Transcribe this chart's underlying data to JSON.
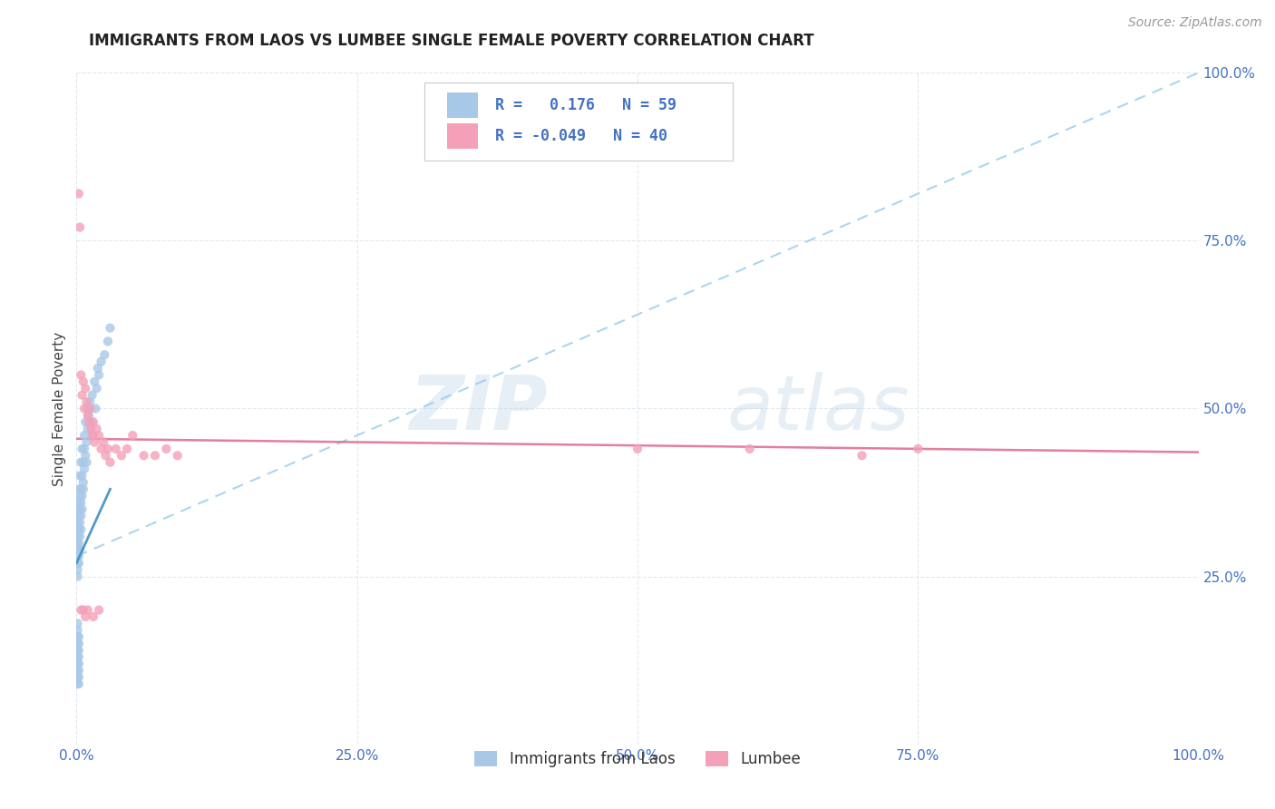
{
  "title": "IMMIGRANTS FROM LAOS VS LUMBEE SINGLE FEMALE POVERTY CORRELATION CHART",
  "source": "Source: ZipAtlas.com",
  "ylabel": "Single Female Poverty",
  "legend_label1": "Immigrants from Laos",
  "legend_label2": "Lumbee",
  "r1": 0.176,
  "n1": 59,
  "r2": -0.049,
  "n2": 40,
  "color_blue": "#a8c8e8",
  "color_pink": "#f4a0b8",
  "trendline1_color": "#90c8e8",
  "trendline2_color": "#e07090",
  "watermark_zip": "ZIP",
  "watermark_atlas": "atlas",
  "background_color": "#ffffff",
  "grid_color": "#e0e8f0",
  "axis_color": "#4472c4",
  "ytick_labels": [
    "25.0%",
    "50.0%",
    "75.0%",
    "100.0%"
  ],
  "ytick_vals": [
    0.25,
    0.5,
    0.75,
    1.0
  ],
  "xtick_labels": [
    "0.0%",
    "25.0%",
    "50.0%",
    "75.0%",
    "100.0%"
  ],
  "xtick_vals": [
    0.0,
    0.25,
    0.5,
    0.75,
    1.0
  ],
  "laos_x": [
    0.001,
    0.001,
    0.001,
    0.001,
    0.001,
    0.001,
    0.001,
    0.001,
    0.001,
    0.001,
    0.002,
    0.002,
    0.002,
    0.002,
    0.002,
    0.002,
    0.002,
    0.002,
    0.003,
    0.003,
    0.003,
    0.003,
    0.003,
    0.003,
    0.004,
    0.004,
    0.004,
    0.004,
    0.004,
    0.005,
    0.005,
    0.005,
    0.005,
    0.006,
    0.006,
    0.006,
    0.007,
    0.007,
    0.007,
    0.008,
    0.008,
    0.009,
    0.009,
    0.01,
    0.01,
    0.011,
    0.012,
    0.013,
    0.014,
    0.015,
    0.016,
    0.017,
    0.018,
    0.019,
    0.02,
    0.022,
    0.025,
    0.028,
    0.03
  ],
  "laos_y": [
    0.3,
    0.32,
    0.28,
    0.27,
    0.29,
    0.31,
    0.26,
    0.25,
    0.35,
    0.33,
    0.32,
    0.34,
    0.3,
    0.28,
    0.36,
    0.38,
    0.29,
    0.27,
    0.35,
    0.33,
    0.31,
    0.37,
    0.29,
    0.4,
    0.38,
    0.36,
    0.34,
    0.32,
    0.42,
    0.4,
    0.37,
    0.35,
    0.44,
    0.42,
    0.39,
    0.38,
    0.44,
    0.41,
    0.46,
    0.43,
    0.48,
    0.45,
    0.42,
    0.47,
    0.5,
    0.49,
    0.51,
    0.48,
    0.52,
    0.46,
    0.54,
    0.5,
    0.53,
    0.56,
    0.55,
    0.57,
    0.58,
    0.6,
    0.62
  ],
  "laos_y_low": [
    0.12,
    0.15,
    0.1,
    0.13,
    0.16,
    0.11,
    0.14,
    0.17,
    0.09,
    0.18,
    0.13,
    0.11,
    0.15,
    0.12,
    0.1,
    0.16,
    0.14,
    0.09,
    0.14,
    0.12,
    0.16,
    0.11,
    0.13,
    0.1,
    0.15,
    0.12,
    0.14,
    0.11,
    0.13,
    0.16,
    0.13,
    0.11,
    0.14,
    0.15,
    0.12,
    0.13,
    0.16,
    0.14,
    0.12,
    0.15,
    0.13,
    0.14,
    0.16,
    0.15,
    0.13,
    0.14,
    0.15,
    0.13,
    0.16,
    0.14,
    0.15,
    0.14,
    0.13,
    0.16,
    0.15,
    0.14,
    0.13,
    0.15,
    0.16
  ],
  "lumbee_x": [
    0.002,
    0.003,
    0.004,
    0.005,
    0.006,
    0.007,
    0.008,
    0.009,
    0.01,
    0.011,
    0.012,
    0.013,
    0.014,
    0.015,
    0.016,
    0.018,
    0.02,
    0.022,
    0.024,
    0.026,
    0.028,
    0.03,
    0.035,
    0.04,
    0.045,
    0.05,
    0.06,
    0.07,
    0.08,
    0.09,
    0.5,
    0.6,
    0.7,
    0.75,
    0.004,
    0.006,
    0.008,
    0.01,
    0.015,
    0.02
  ],
  "lumbee_y": [
    0.82,
    0.77,
    0.55,
    0.52,
    0.54,
    0.5,
    0.53,
    0.51,
    0.49,
    0.48,
    0.5,
    0.47,
    0.46,
    0.48,
    0.45,
    0.47,
    0.46,
    0.44,
    0.45,
    0.43,
    0.44,
    0.42,
    0.44,
    0.43,
    0.44,
    0.46,
    0.43,
    0.43,
    0.44,
    0.43,
    0.44,
    0.44,
    0.43,
    0.44,
    0.2,
    0.2,
    0.19,
    0.2,
    0.19,
    0.2
  ],
  "trendline1_x": [
    0.0,
    1.0
  ],
  "trendline1_y": [
    0.28,
    1.0
  ],
  "trendline2_x": [
    0.0,
    1.0
  ],
  "trendline2_y": [
    0.455,
    0.435
  ]
}
